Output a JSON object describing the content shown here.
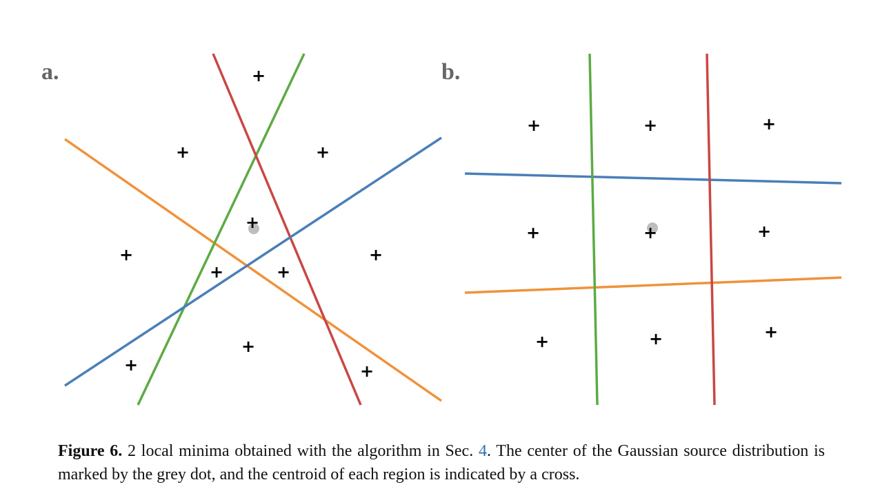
{
  "figure": {
    "panels": [
      {
        "id": "a",
        "label": "a."
      },
      {
        "id": "b",
        "label": "b."
      }
    ],
    "caption": {
      "figure_number": "Figure 6.",
      "text_before_ref": " 2 local minima obtained with the algorithm in Sec. ",
      "ref": "4",
      "text_after_ref": ". The center of the Gaussian source distribution is marked by the grey dot, and the centroid of each region is indicated by a cross."
    }
  },
  "colors": {
    "blue": "#4a7fb8",
    "orange": "#f0923a",
    "green": "#5cab44",
    "red": "#c94743",
    "dot": "#bdbdbd",
    "cross": "#000000",
    "label": "#666666"
  },
  "cross_symbol": "+"
}
